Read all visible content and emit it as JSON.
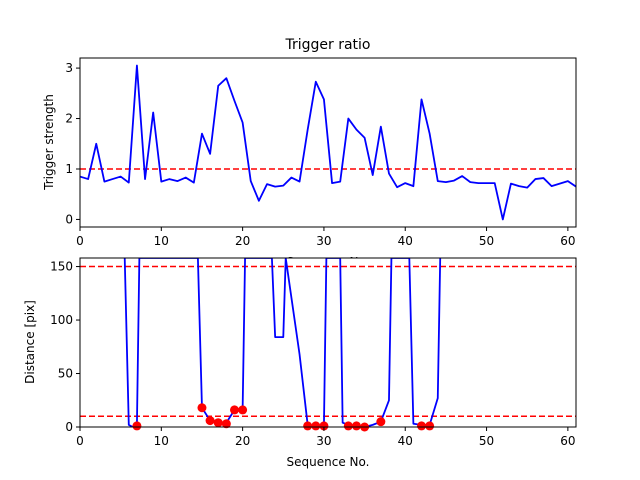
{
  "chart_data": [
    {
      "type": "line",
      "title": "Trigger ratio",
      "xlabel": "Sequence No.",
      "ylabel": "Trigger strength",
      "xlim": [
        0,
        61
      ],
      "ylim": [
        -0.15,
        3.2
      ],
      "xticks": [
        0,
        10,
        20,
        30,
        40,
        50,
        60
      ],
      "yticks": [
        0,
        1,
        2,
        3
      ],
      "grid": false,
      "series": [
        {
          "color": "#0000ff",
          "x": [
            0,
            1,
            2,
            3,
            4,
            5,
            6,
            7,
            8,
            9,
            10,
            11,
            12,
            13,
            14,
            15,
            16,
            17,
            18,
            19,
            20,
            21,
            22,
            23,
            24,
            25,
            26,
            27,
            28,
            29,
            30,
            31,
            32,
            33,
            34,
            35,
            36,
            37,
            38,
            39,
            40,
            41,
            42,
            43,
            44,
            45,
            46,
            47,
            48,
            49,
            50,
            51,
            52,
            53,
            54,
            55,
            56,
            57,
            58,
            59,
            60,
            61
          ],
          "y": [
            0.85,
            0.8,
            1.5,
            0.75,
            0.8,
            0.85,
            0.73,
            3.05,
            0.8,
            2.12,
            0.75,
            0.8,
            0.76,
            0.83,
            0.73,
            1.7,
            1.3,
            2.65,
            2.8,
            2.35,
            1.92,
            0.76,
            0.37,
            0.7,
            0.65,
            0.67,
            0.83,
            0.75,
            1.78,
            2.73,
            2.38,
            0.72,
            0.75,
            2.0,
            1.78,
            1.62,
            0.88,
            1.84,
            0.91,
            0.64,
            0.72,
            0.66,
            2.38,
            1.7,
            0.76,
            0.74,
            0.77,
            0.86,
            0.74,
            0.72,
            0.72,
            0.72,
            0.0,
            0.71,
            0.66,
            0.63,
            0.8,
            0.82,
            0.66,
            0.71,
            0.76,
            0.65
          ]
        }
      ],
      "reference_lines": [
        {
          "y": 1,
          "color": "#ff0000",
          "style": "dashed"
        }
      ]
    },
    {
      "type": "line",
      "title": "",
      "xlabel": "Sequence No.",
      "ylabel": "Distance [pix]",
      "xlim": [
        0,
        61
      ],
      "ylim": [
        0,
        158
      ],
      "xticks": [
        0,
        10,
        20,
        30,
        40,
        50,
        60
      ],
      "yticks": [
        0,
        50,
        100,
        150
      ],
      "grid": false,
      "series": [
        {
          "color": "#0000ff",
          "x": [
            5.5,
            6.0,
            6.5,
            7.0,
            7.3,
            14.5,
            15.0,
            16.0,
            17.0,
            17.5,
            18.0,
            19.0,
            20.0,
            20.3,
            23.6,
            24.0,
            25.0,
            25.3,
            27.0,
            28.0,
            29.0,
            30.0,
            30.3,
            32.0,
            32.3,
            33.0,
            34.0,
            35.0,
            36.0,
            37.0,
            38.0,
            38.3,
            40.5,
            41.0,
            42.0,
            43.0,
            44.0,
            44.3
          ],
          "y": [
            158,
            2,
            0,
            2,
            158,
            158,
            18,
            6,
            5,
            3,
            4,
            16,
            16,
            158,
            158,
            84,
            84,
            158,
            68,
            2,
            1,
            1,
            158,
            158,
            4,
            2,
            1,
            0,
            2,
            5,
            25,
            158,
            158,
            3,
            2,
            2,
            27,
            158
          ]
        },
        {
          "name": "",
          "color": "#ff0000",
          "style": "markers",
          "x": [
            7,
            15,
            16,
            17,
            18,
            19,
            20,
            28,
            29,
            30,
            33,
            34,
            35,
            37,
            42,
            43
          ],
          "y": [
            1,
            18,
            6,
            4,
            3,
            16,
            16,
            1,
            1,
            1,
            1,
            1,
            0,
            5,
            1,
            1
          ]
        }
      ],
      "reference_lines": [
        {
          "y": 150,
          "color": "#ff0000",
          "style": "dashed"
        },
        {
          "y": 10,
          "color": "#ff0000",
          "style": "dashed"
        }
      ]
    }
  ]
}
